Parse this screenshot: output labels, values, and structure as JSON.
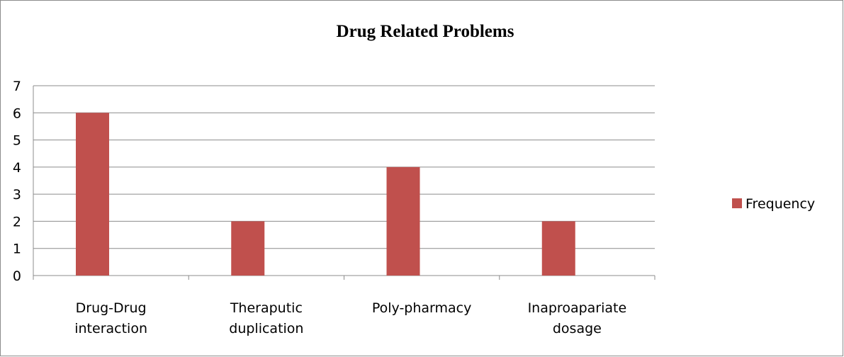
{
  "chart_data": {
    "type": "bar",
    "title": "Drug Related Problems",
    "categories": [
      [
        "Drug-Drug",
        "interaction"
      ],
      [
        "Theraputic",
        "duplication"
      ],
      [
        "Poly-pharmacy"
      ],
      [
        "Inaproapariate",
        "dosage"
      ]
    ],
    "series": [
      {
        "name": "Frequency",
        "values": [
          6,
          2,
          4,
          2
        ],
        "color": "#C0504D"
      }
    ],
    "ylim": [
      0,
      7
    ],
    "yticks": [
      0,
      1,
      2,
      3,
      4,
      5,
      6,
      7
    ],
    "grid": true,
    "legend": "right",
    "xlabel": "",
    "ylabel": ""
  }
}
